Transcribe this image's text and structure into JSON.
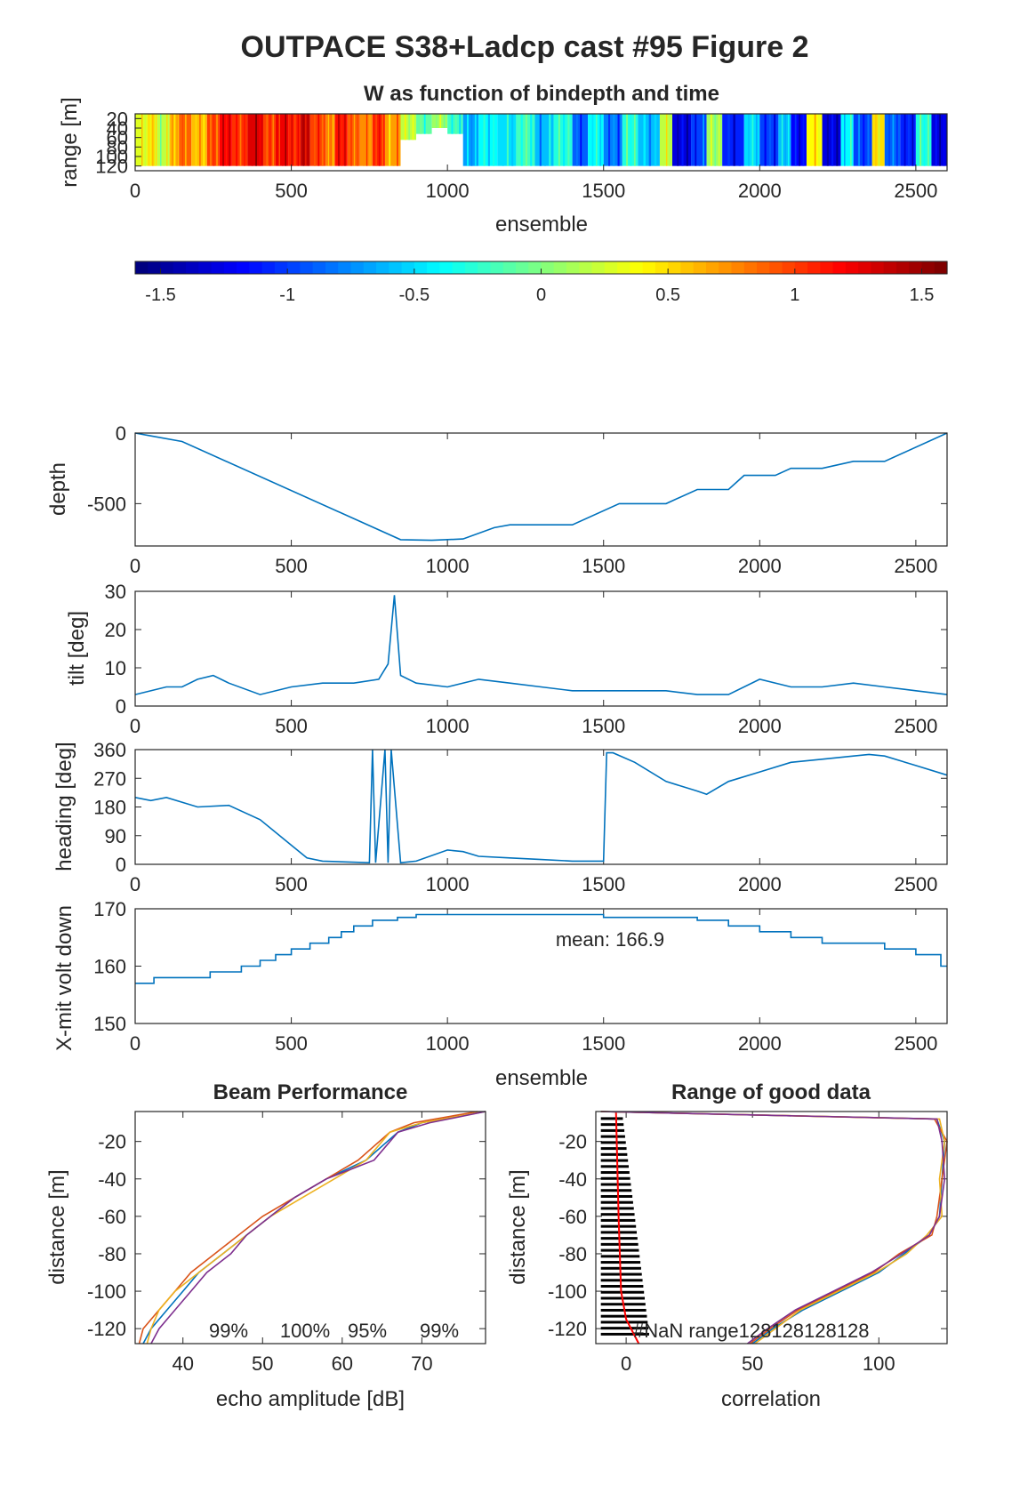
{
  "figure": {
    "title": "OUTPACE S38+Ladcp cast #95 Figure 2"
  },
  "chart_data": [
    {
      "type": "heatmap",
      "title": "W as function of bindepth and time",
      "xlabel": "ensemble",
      "ylabel": "range [m]",
      "xlim": [
        0,
        2600
      ],
      "ylim": [
        10,
        130
      ],
      "xticks": [
        0,
        500,
        1000,
        1500,
        2000,
        2500
      ],
      "yticks": [
        20,
        40,
        60,
        80,
        100,
        120
      ],
      "colorbar": {
        "clim": [
          -1.6,
          1.6
        ],
        "ticks": [
          -1.5,
          -1,
          -0.5,
          0,
          0.5,
          1,
          1.5
        ],
        "tick_labels": [
          "-1.5",
          "-1",
          "-0.5",
          "0",
          "0.5",
          "1",
          "1.5"
        ],
        "colormap": "jet"
      },
      "columns": [
        {
          "x0": 0,
          "x1": 40,
          "w": 0.3
        },
        {
          "x0": 40,
          "x1": 70,
          "w": 0.5
        },
        {
          "x0": 70,
          "x1": 110,
          "w": 0.2
        },
        {
          "x0": 110,
          "x1": 140,
          "w": 0.6
        },
        {
          "x0": 140,
          "x1": 180,
          "w": 0.9
        },
        {
          "x0": 180,
          "x1": 230,
          "w": 0.6
        },
        {
          "x0": 230,
          "x1": 270,
          "w": 1.0
        },
        {
          "x0": 270,
          "x1": 310,
          "w": 1.2
        },
        {
          "x0": 310,
          "x1": 360,
          "w": 1.05
        },
        {
          "x0": 360,
          "x1": 410,
          "w": 1.3
        },
        {
          "x0": 410,
          "x1": 450,
          "w": 1.0
        },
        {
          "x0": 450,
          "x1": 490,
          "w": 1.25
        },
        {
          "x0": 490,
          "x1": 530,
          "w": 1.1
        },
        {
          "x0": 530,
          "x1": 560,
          "w": 1.4
        },
        {
          "x0": 560,
          "x1": 610,
          "w": 1.0
        },
        {
          "x0": 610,
          "x1": 640,
          "w": 0.8
        },
        {
          "x0": 640,
          "x1": 680,
          "w": 1.15
        },
        {
          "x0": 680,
          "x1": 720,
          "w": 0.9
        },
        {
          "x0": 720,
          "x1": 760,
          "w": 0.75
        },
        {
          "x0": 760,
          "x1": 800,
          "w": 1.1
        },
        {
          "x0": 800,
          "x1": 850,
          "w": 0.7
        },
        {
          "x0": 850,
          "x1": 900,
          "w": 0.2
        },
        {
          "x0": 900,
          "x1": 950,
          "w": -0.1
        },
        {
          "x0": 950,
          "x1": 1000,
          "w": 0.1
        },
        {
          "x0": 1000,
          "x1": 1050,
          "w": -0.2
        },
        {
          "x0": 1050,
          "x1": 1100,
          "w": -0.7
        },
        {
          "x0": 1100,
          "x1": 1160,
          "w": -0.4
        },
        {
          "x0": 1160,
          "x1": 1220,
          "w": -0.5
        },
        {
          "x0": 1220,
          "x1": 1280,
          "w": -0.2
        },
        {
          "x0": 1280,
          "x1": 1340,
          "w": -0.6
        },
        {
          "x0": 1340,
          "x1": 1400,
          "w": -0.3
        },
        {
          "x0": 1400,
          "x1": 1450,
          "w": -0.9
        },
        {
          "x0": 1450,
          "x1": 1500,
          "w": -0.4
        },
        {
          "x0": 1500,
          "x1": 1560,
          "w": -0.8
        },
        {
          "x0": 1560,
          "x1": 1610,
          "w": -0.3
        },
        {
          "x0": 1610,
          "x1": 1680,
          "w": -0.6
        },
        {
          "x0": 1680,
          "x1": 1720,
          "w": 0.2
        },
        {
          "x0": 1720,
          "x1": 1780,
          "w": -1.3
        },
        {
          "x0": 1780,
          "x1": 1830,
          "w": -1.0
        },
        {
          "x0": 1830,
          "x1": 1880,
          "w": 0.1
        },
        {
          "x0": 1880,
          "x1": 1950,
          "w": -1.1
        },
        {
          "x0": 1950,
          "x1": 2000,
          "w": -0.5
        },
        {
          "x0": 2000,
          "x1": 2060,
          "w": -1.0
        },
        {
          "x0": 2060,
          "x1": 2100,
          "w": -0.6
        },
        {
          "x0": 2100,
          "x1": 2150,
          "w": -1.2
        },
        {
          "x0": 2150,
          "x1": 2200,
          "w": 0.4
        },
        {
          "x0": 2200,
          "x1": 2260,
          "w": -1.3
        },
        {
          "x0": 2260,
          "x1": 2300,
          "w": -0.4
        },
        {
          "x0": 2300,
          "x1": 2360,
          "w": -1.0
        },
        {
          "x0": 2360,
          "x1": 2400,
          "w": 0.5
        },
        {
          "x0": 2400,
          "x1": 2450,
          "w": -0.9
        },
        {
          "x0": 2450,
          "x1": 2500,
          "w": -1.1
        },
        {
          "x0": 2500,
          "x1": 2550,
          "w": -0.3
        },
        {
          "x0": 2550,
          "x1": 2600,
          "w": -1.3
        }
      ]
    },
    {
      "type": "line",
      "xlabel": "",
      "ylabel": "depth",
      "xlim": [
        0,
        2600
      ],
      "ylim": [
        -800,
        0
      ],
      "xticks": [
        0,
        500,
        1000,
        1500,
        2000,
        2500
      ],
      "yticks": [
        0,
        -500
      ],
      "series": [
        {
          "x": [
            0,
            50,
            150,
            850,
            950,
            1050,
            1150,
            1200,
            1400,
            1550,
            1700,
            1800,
            1900,
            1950,
            2050,
            2100,
            2200,
            2300,
            2400,
            2600
          ],
          "y": [
            0,
            -20,
            -60,
            -755,
            -760,
            -750,
            -670,
            -650,
            -650,
            -500,
            -500,
            -400,
            -400,
            -300,
            -300,
            -250,
            -250,
            -200,
            -200,
            0
          ],
          "color": "#0072bd"
        }
      ]
    },
    {
      "type": "line",
      "xlabel": "",
      "ylabel": "tilt [deg]",
      "xlim": [
        0,
        2600
      ],
      "ylim": [
        0,
        30
      ],
      "xticks": [
        0,
        500,
        1000,
        1500,
        2000,
        2500
      ],
      "yticks": [
        0,
        10,
        20,
        30
      ],
      "series": [
        {
          "x": [
            0,
            100,
            150,
            200,
            250,
            300,
            400,
            500,
            600,
            700,
            780,
            810,
            830,
            850,
            900,
            1000,
            1100,
            1200,
            1300,
            1400,
            1500,
            1600,
            1700,
            1800,
            1900,
            2000,
            2100,
            2200,
            2300,
            2400,
            2500,
            2600
          ],
          "y": [
            3,
            5,
            5,
            7,
            8,
            6,
            3,
            5,
            6,
            6,
            7,
            11,
            29,
            8,
            6,
            5,
            7,
            6,
            5,
            4,
            4,
            4,
            4,
            3,
            3,
            7,
            5,
            5,
            6,
            5,
            4,
            3
          ],
          "color": "#0072bd"
        }
      ]
    },
    {
      "type": "line",
      "xlabel": "",
      "ylabel": "heading [deg]",
      "xlim": [
        0,
        2600
      ],
      "ylim": [
        0,
        360
      ],
      "xticks": [
        0,
        500,
        1000,
        1500,
        2000,
        2500
      ],
      "yticks": [
        0,
        90,
        180,
        270,
        360
      ],
      "series": [
        {
          "x": [
            0,
            50,
            100,
            200,
            300,
            400,
            500,
            550,
            600,
            750,
            760,
            770,
            800,
            810,
            820,
            850,
            900,
            1000,
            1050,
            1100,
            1200,
            1300,
            1400,
            1500,
            1510,
            1530,
            1600,
            1700,
            1800,
            1830,
            1900,
            2000,
            2100,
            2200,
            2300,
            2350,
            2400,
            2500,
            2600
          ],
          "y": [
            210,
            200,
            210,
            180,
            185,
            140,
            60,
            20,
            10,
            5,
            360,
            5,
            360,
            5,
            360,
            5,
            10,
            45,
            40,
            25,
            20,
            15,
            10,
            10,
            350,
            350,
            320,
            260,
            230,
            220,
            260,
            290,
            320,
            330,
            340,
            345,
            340,
            310,
            280
          ],
          "color": "#0072bd"
        }
      ]
    },
    {
      "type": "line",
      "xlabel": "ensemble",
      "ylabel": "X-mit volt down",
      "xlim": [
        0,
        2600
      ],
      "ylim": [
        150,
        170
      ],
      "xticks": [
        0,
        500,
        1000,
        1500,
        2000,
        2500
      ],
      "yticks": [
        150,
        160,
        170
      ],
      "annotation": "mean: 166.9",
      "series": [
        {
          "x": [
            0,
            60,
            60,
            240,
            240,
            340,
            340,
            400,
            400,
            450,
            450,
            500,
            500,
            560,
            560,
            620,
            620,
            660,
            660,
            700,
            700,
            760,
            760,
            840,
            840,
            900,
            900,
            1500,
            1500,
            1800,
            1800,
            1900,
            1900,
            2000,
            2000,
            2100,
            2100,
            2200,
            2200,
            2400,
            2400,
            2500,
            2500,
            2580,
            2580,
            2600
          ],
          "y": [
            157,
            157,
            158,
            158,
            159,
            159,
            160,
            160,
            161,
            161,
            162,
            162,
            163,
            163,
            164,
            164,
            165,
            165,
            166,
            166,
            167,
            167,
            168,
            168,
            168.5,
            168.5,
            169,
            169,
            168.5,
            168.5,
            168,
            168,
            167,
            167,
            166,
            166,
            165,
            165,
            164,
            164,
            163,
            163,
            162,
            162,
            160,
            160
          ],
          "color": "#0072bd"
        }
      ]
    },
    {
      "type": "line",
      "title": "Beam Performance",
      "xlabel": "echo amplitude [dB]",
      "ylabel": "distance [m]",
      "xlim": [
        34,
        78
      ],
      "ylim": [
        -128,
        -4
      ],
      "xticks": [
        40,
        50,
        60,
        70
      ],
      "yticks": [
        -20,
        -40,
        -60,
        -80,
        -100,
        -120
      ],
      "annotations": [
        "99%",
        "100%",
        "95%",
        "99%"
      ],
      "series": [
        {
          "distance": [
            -4,
            -10,
            -15,
            -30,
            -40,
            -50,
            -60,
            -70,
            -80,
            -90,
            -100,
            -110,
            -120,
            -128
          ],
          "values": [
            78,
            70,
            67,
            63,
            58,
            54,
            51,
            48,
            45,
            42,
            40,
            38,
            36,
            35
          ],
          "color": "#0072bd"
        },
        {
          "distance": [
            -4,
            -10,
            -15,
            -30,
            -40,
            -50,
            -60,
            -70,
            -80,
            -90,
            -100,
            -110,
            -120,
            -128
          ],
          "values": [
            77,
            69,
            66,
            62,
            58,
            54,
            50,
            47,
            44,
            41,
            39,
            37,
            35,
            34.5
          ],
          "color": "#d95319"
        },
        {
          "distance": [
            -4,
            -10,
            -15,
            -30,
            -40,
            -50,
            -60,
            -70,
            -80,
            -90,
            -100,
            -110,
            -120,
            -128
          ],
          "values": [
            78,
            70,
            66,
            63,
            59,
            55,
            51,
            48,
            45,
            42,
            39,
            37,
            36,
            35.5
          ],
          "color": "#edb120"
        },
        {
          "distance": [
            -4,
            -10,
            -15,
            -30,
            -40,
            -50,
            -60,
            -70,
            -80,
            -90,
            -100,
            -110,
            -120,
            -128
          ],
          "values": [
            78,
            71,
            67,
            64,
            58,
            54,
            51,
            48,
            46,
            43,
            41,
            39,
            37,
            36
          ],
          "color": "#7e2f8e"
        }
      ]
    },
    {
      "type": "line",
      "title": "Range of good data",
      "xlabel": "correlation",
      "ylabel": "distance [m]",
      "xlim": [
        -12,
        127
      ],
      "ylim": [
        -128,
        -4
      ],
      "xticks": [
        0,
        50,
        100
      ],
      "yticks": [
        -20,
        -40,
        -60,
        -80,
        -100,
        -120
      ],
      "annotation": "#NaN range128128128128",
      "series": [
        {
          "distance": [
            -4,
            -8,
            -20,
            -40,
            -60,
            -70,
            -80,
            -90,
            -100,
            -110,
            -120,
            -128
          ],
          "values": [
            -10,
            123,
            126,
            125,
            124,
            120,
            110,
            100,
            85,
            70,
            58,
            50
          ],
          "color": "#0072bd"
        },
        {
          "distance": [
            -4,
            -8,
            -20,
            -40,
            -60,
            -70,
            -80,
            -90,
            -100,
            -110,
            -120,
            -128
          ],
          "values": [
            -10,
            122,
            127,
            125,
            123,
            121,
            108,
            98,
            83,
            68,
            57,
            49
          ],
          "color": "#d95319"
        },
        {
          "distance": [
            -4,
            -8,
            -20,
            -40,
            -60,
            -70,
            -80,
            -90,
            -100,
            -110,
            -120,
            -128
          ],
          "values": [
            -10,
            124,
            126,
            124,
            125,
            119,
            111,
            99,
            84,
            69,
            59,
            51
          ],
          "color": "#edb120"
        },
        {
          "distance": [
            -4,
            -8,
            -20,
            -40,
            -60,
            -70,
            -80,
            -90,
            -100,
            -110,
            -120,
            -128
          ],
          "values": [
            -10,
            123,
            125,
            126,
            124,
            120,
            109,
            97,
            82,
            67,
            56,
            48
          ],
          "color": "#7e2f8e"
        }
      ]
    }
  ]
}
